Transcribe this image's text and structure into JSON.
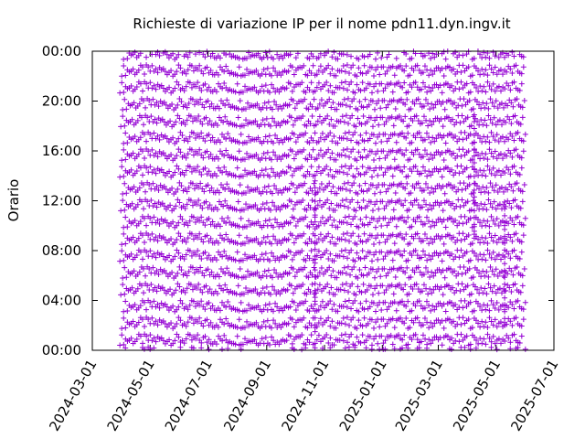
{
  "chart_data": {
    "type": "scatter",
    "title": "Richieste di variazione IP per il nome pdn11.dyn.ingv.it",
    "xlabel": "",
    "ylabel": "Orario",
    "x_range": [
      "2024-03-01",
      "2025-07-01"
    ],
    "y_range": [
      "00:00",
      "24:00"
    ],
    "x_ticks": [
      "2024-03-01",
      "2024-05-01",
      "2024-07-01",
      "2024-09-01",
      "2024-11-01",
      "2025-01-01",
      "2025-03-01",
      "2025-05-01",
      "2025-07-01"
    ],
    "y_ticks": [
      "00:00",
      "04:00",
      "08:00",
      "12:00",
      "16:00",
      "20:00",
      "00:00"
    ],
    "marker": "+",
    "color": "#9400d3",
    "grid": false,
    "legend": "none",
    "series": [
      {
        "x_start": "2024-04-01",
        "x_end": "2025-05-31",
        "y_start_hours": 0.4,
        "daily_shift_hours": 1.35,
        "step_days": 2,
        "note": "approx. one IP change every ~25.35 hours, drifting through the day"
      }
    ]
  }
}
